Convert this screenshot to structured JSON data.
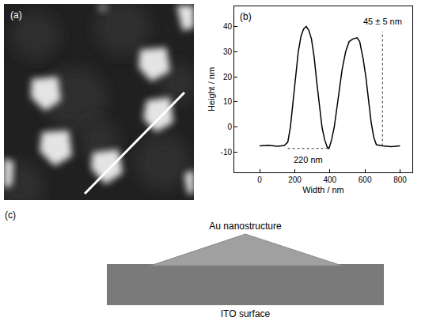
{
  "image_panel": {
    "label": "(a)"
  },
  "chart_data": {
    "type": "line",
    "panel": "(b)",
    "x_label": "Width / nm",
    "y_label": "Height / nm",
    "color": "#000000",
    "x": [
      0,
      50,
      100,
      140,
      160,
      175,
      190,
      205,
      220,
      235,
      250,
      265,
      280,
      295,
      310,
      325,
      340,
      355,
      370,
      385,
      395,
      410,
      425,
      440,
      455,
      470,
      490,
      510,
      530,
      555,
      570,
      590,
      605,
      620,
      635,
      650,
      665,
      700,
      750,
      800
    ],
    "values": [
      -7.5,
      -7.2,
      -7.6,
      -7.3,
      -6,
      0,
      10,
      20,
      30,
      36,
      39,
      40,
      38.5,
      35,
      28,
      18,
      8,
      0,
      -5,
      -8,
      -8.5,
      -5,
      0,
      8,
      16,
      23,
      30,
      34,
      35,
      35.5,
      34,
      27,
      20,
      10,
      2,
      -4,
      -7,
      -7.5,
      -7.8,
      -7.5
    ],
    "xlim": [
      -145,
      870
    ],
    "xticks": [
      0,
      200,
      400,
      600,
      800
    ],
    "ylim": [
      -18,
      48
    ],
    "yticks": [
      -10,
      0,
      10,
      20,
      30,
      40
    ],
    "grid": false,
    "annotations": [
      {
        "text": "45 ± 5 nm",
        "x": 700,
        "y": 42,
        "line_x": [
          700,
          700
        ],
        "line_y": [
          -7.5,
          38
        ]
      },
      {
        "text": "220 nm",
        "x": 275,
        "y": -13,
        "line_x": [
          160,
          395
        ],
        "line_y": [
          -8.5,
          -8.5
        ]
      }
    ]
  },
  "diagram_panel": {
    "label": "(c)",
    "nodes": [
      {
        "label": "Au nanostructure"
      },
      {
        "label": "ITO surface"
      }
    ]
  }
}
